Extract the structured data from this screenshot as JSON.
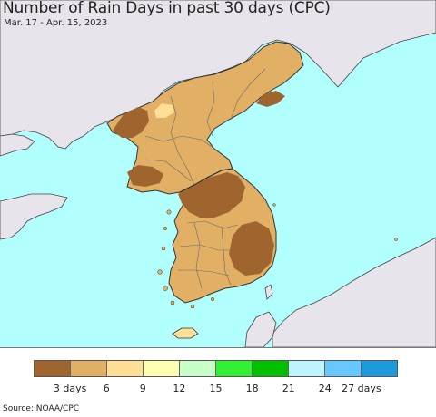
{
  "header": {
    "title": "Number of Rain Days in past 30 days (CPC)",
    "date_range": "Mar. 17 - Apr. 15, 2023"
  },
  "map": {
    "region": "Korean Peninsula",
    "colors": {
      "ocean": "#b2ffff",
      "foreign_land": "#e8e4ec",
      "border": "#333333",
      "province_lines": "#6a6a6a"
    }
  },
  "legend": {
    "colors": [
      "#a0652f",
      "#e1b064",
      "#ffde96",
      "#ffffb4",
      "#c8ffc8",
      "#32f032",
      "#00c000",
      "#bcf4ff",
      "#66c8ff",
      "#1c9bdc"
    ],
    "tick_labels": [
      "3 days",
      "6",
      "9",
      "12",
      "15",
      "18",
      "21",
      "24",
      "27 days"
    ]
  },
  "footer": {
    "source": "Source: NOAA/CPC"
  }
}
